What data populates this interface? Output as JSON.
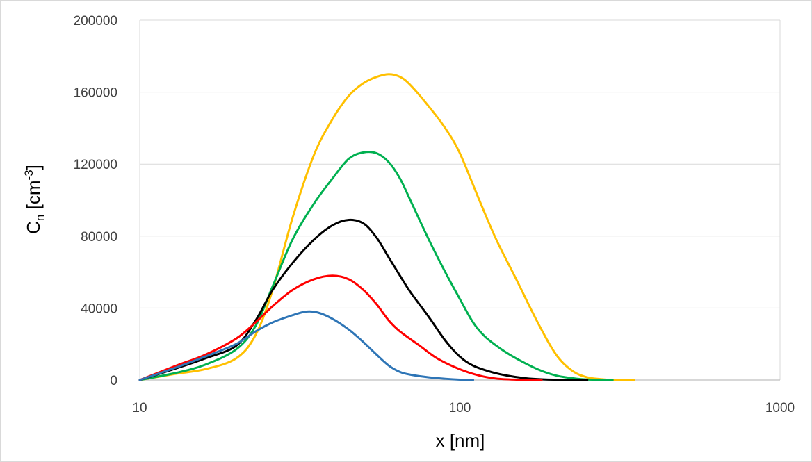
{
  "chart_data": {
    "type": "line",
    "xscale": "log",
    "xlim": [
      10,
      1000
    ],
    "ylim": [
      0,
      200000
    ],
    "xlabel": "x [nm]",
    "ylabel": {
      "base": "C",
      "sub": "n",
      "unit_open": " [cm",
      "sup": "-3",
      "unit_close": "]"
    },
    "grid": true,
    "legend": "none",
    "x_ticks": [
      {
        "value": 10,
        "label": "10"
      },
      {
        "value": 100,
        "label": "100"
      },
      {
        "value": 1000,
        "label": "1000"
      }
    ],
    "y_ticks": [
      {
        "value": 0,
        "label": "0"
      },
      {
        "value": 40000,
        "label": "40000"
      },
      {
        "value": 80000,
        "label": "80000"
      },
      {
        "value": 120000,
        "label": "120000"
      },
      {
        "value": 160000,
        "label": "160000"
      },
      {
        "value": 200000,
        "label": "200000"
      }
    ],
    "series": [
      {
        "color": "#ffc000",
        "points": [
          [
            10,
            0
          ],
          [
            13,
            3500
          ],
          [
            16,
            6000
          ],
          [
            20,
            12000
          ],
          [
            23,
            25000
          ],
          [
            26,
            50000
          ],
          [
            30,
            90000
          ],
          [
            35,
            125000
          ],
          [
            40,
            145000
          ],
          [
            45,
            158000
          ],
          [
            50,
            165000
          ],
          [
            55,
            168500
          ],
          [
            60,
            170000
          ],
          [
            65,
            168500
          ],
          [
            70,
            164000
          ],
          [
            80,
            152000
          ],
          [
            90,
            140000
          ],
          [
            100,
            126000
          ],
          [
            115,
            100000
          ],
          [
            130,
            78000
          ],
          [
            150,
            56000
          ],
          [
            175,
            32000
          ],
          [
            200,
            14000
          ],
          [
            225,
            5000
          ],
          [
            250,
            1500
          ],
          [
            275,
            500
          ],
          [
            300,
            0
          ],
          [
            350,
            0
          ]
        ]
      },
      {
        "color": "#00b050",
        "points": [
          [
            10,
            0
          ],
          [
            13,
            4000
          ],
          [
            16,
            8500
          ],
          [
            20,
            17000
          ],
          [
            23,
            30000
          ],
          [
            26,
            52000
          ],
          [
            30,
            78000
          ],
          [
            35,
            98000
          ],
          [
            40,
            112000
          ],
          [
            45,
            123000
          ],
          [
            50,
            126500
          ],
          [
            55,
            126000
          ],
          [
            60,
            121000
          ],
          [
            65,
            112000
          ],
          [
            70,
            100000
          ],
          [
            80,
            78000
          ],
          [
            90,
            60000
          ],
          [
            100,
            45000
          ],
          [
            110,
            32000
          ],
          [
            120,
            24000
          ],
          [
            135,
            17000
          ],
          [
            150,
            12000
          ],
          [
            175,
            6000
          ],
          [
            200,
            2500
          ],
          [
            230,
            800
          ],
          [
            250,
            300
          ],
          [
            300,
            0
          ]
        ]
      },
      {
        "color": "#000000",
        "points": [
          [
            10,
            0
          ],
          [
            13,
            6500
          ],
          [
            16,
            12000
          ],
          [
            20,
            19000
          ],
          [
            23,
            33000
          ],
          [
            26,
            50000
          ],
          [
            30,
            65000
          ],
          [
            35,
            78000
          ],
          [
            40,
            86000
          ],
          [
            45,
            89000
          ],
          [
            50,
            87000
          ],
          [
            55,
            79000
          ],
          [
            60,
            68000
          ],
          [
            65,
            58000
          ],
          [
            70,
            49000
          ],
          [
            80,
            35000
          ],
          [
            90,
            22000
          ],
          [
            100,
            13000
          ],
          [
            110,
            8000
          ],
          [
            125,
            4500
          ],
          [
            140,
            2500
          ],
          [
            160,
            1000
          ],
          [
            180,
            400
          ],
          [
            210,
            100
          ],
          [
            250,
            0
          ]
        ]
      },
      {
        "color": "#ff0000",
        "points": [
          [
            10,
            0
          ],
          [
            13,
            8000
          ],
          [
            16,
            14000
          ],
          [
            20,
            23000
          ],
          [
            23,
            32000
          ],
          [
            26,
            41000
          ],
          [
            30,
            50000
          ],
          [
            35,
            56000
          ],
          [
            40,
            58000
          ],
          [
            45,
            56000
          ],
          [
            50,
            50000
          ],
          [
            55,
            42000
          ],
          [
            60,
            33000
          ],
          [
            65,
            27000
          ],
          [
            75,
            19000
          ],
          [
            85,
            12000
          ],
          [
            100,
            6000
          ],
          [
            115,
            2500
          ],
          [
            130,
            800
          ],
          [
            150,
            200
          ],
          [
            180,
            0
          ]
        ]
      },
      {
        "color": "#2e75b6",
        "points": [
          [
            10,
            0
          ],
          [
            13,
            7000
          ],
          [
            16,
            13000
          ],
          [
            20,
            20000
          ],
          [
            23,
            27000
          ],
          [
            26,
            32000
          ],
          [
            30,
            36000
          ],
          [
            33,
            38000
          ],
          [
            36,
            37500
          ],
          [
            40,
            34000
          ],
          [
            45,
            28000
          ],
          [
            50,
            21000
          ],
          [
            55,
            14000
          ],
          [
            60,
            8000
          ],
          [
            65,
            4500
          ],
          [
            70,
            3000
          ],
          [
            80,
            1500
          ],
          [
            90,
            700
          ],
          [
            100,
            200
          ],
          [
            110,
            0
          ]
        ]
      }
    ]
  }
}
